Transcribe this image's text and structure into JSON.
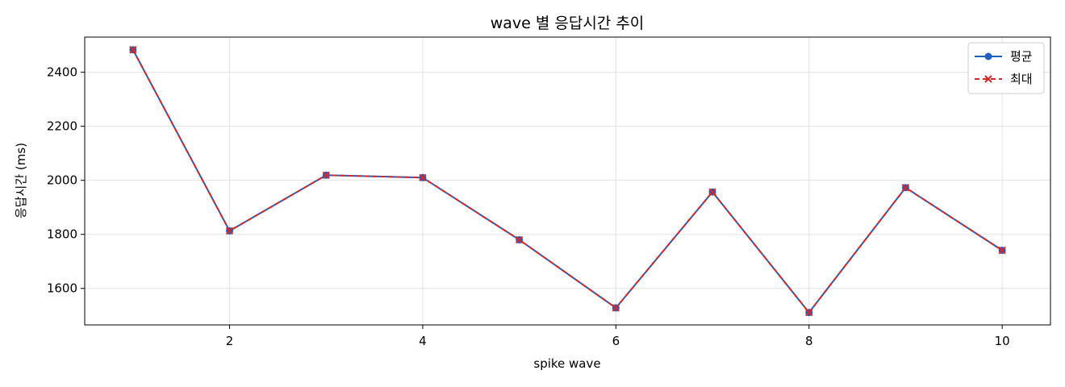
{
  "chart_data": {
    "type": "line",
    "title": "wave 별 응답시간 추이",
    "xlabel": "spike wave",
    "ylabel": "응답시간 (ms)",
    "x": [
      1,
      2,
      3,
      4,
      5,
      6,
      7,
      8,
      9,
      10
    ],
    "xlim": [
      0.5,
      10.5
    ],
    "ylim": [
      1465,
      2530
    ],
    "xticks": [
      2,
      4,
      6,
      8,
      10
    ],
    "yticks": [
      1600,
      1800,
      2000,
      2200,
      2400
    ],
    "grid": true,
    "legend_position": "top-right",
    "series": [
      {
        "name": "평균",
        "color": "#1f5fbf",
        "marker": "circle",
        "line_style": "solid",
        "values": [
          2483,
          1813,
          2019,
          2010,
          1780,
          1528,
          1957,
          1511,
          1973,
          1741
        ]
      },
      {
        "name": "최대",
        "color": "#d62728",
        "marker": "x",
        "line_style": "dashed",
        "values": [
          2483,
          1813,
          2019,
          2010,
          1780,
          1528,
          1957,
          1511,
          1973,
          1741
        ]
      }
    ]
  }
}
